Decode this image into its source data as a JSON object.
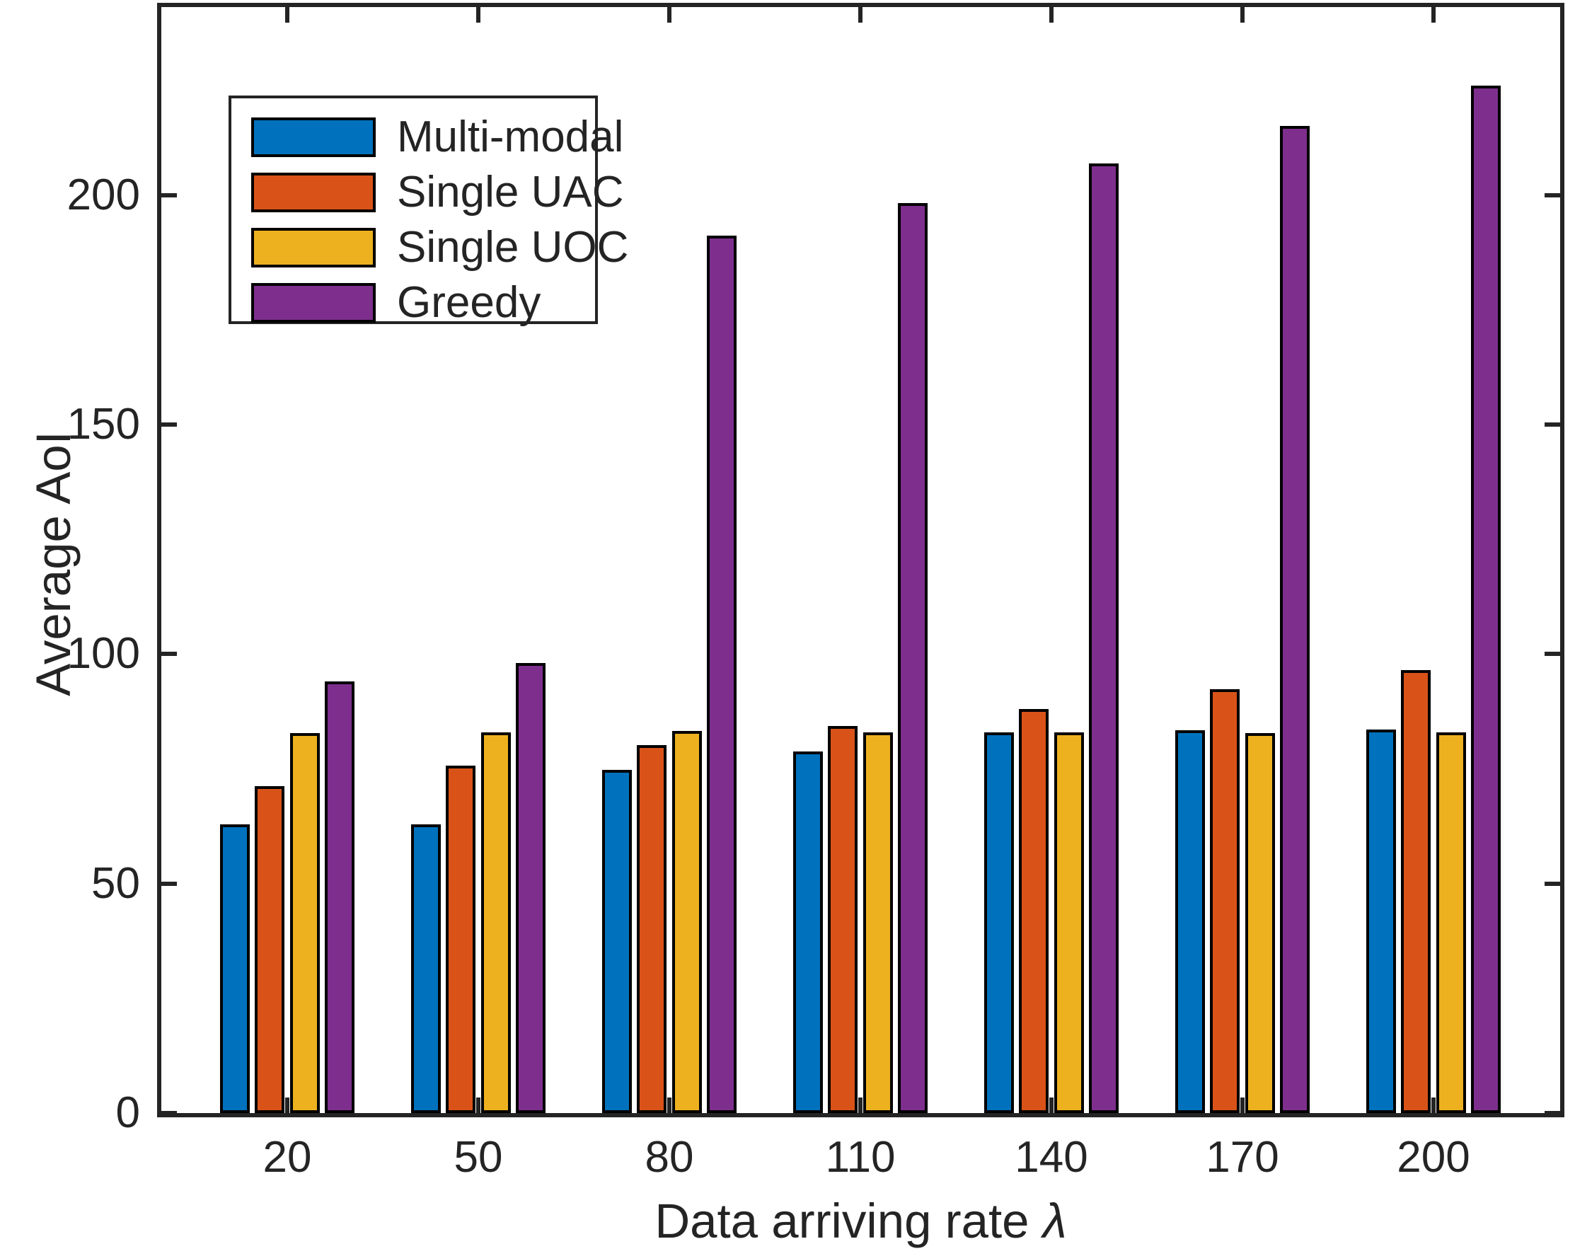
{
  "axis": {
    "ylabel": "Average AoI",
    "xlabel_text": "Data arriving rate ",
    "xlabel_symbol": "λ",
    "axis_color": "#242424"
  },
  "chart_data": {
    "type": "bar",
    "title": "",
    "xlabel": "Data arriving rate λ",
    "ylabel": "Average AoI",
    "categories": [
      "20",
      "50",
      "80",
      "110",
      "140",
      "170",
      "200"
    ],
    "series": [
      {
        "name": "Multi-modal",
        "color": "#0072BD",
        "values": [
          62.9,
          62.9,
          74.8,
          78.8,
          83.0,
          83.4,
          83.6
        ]
      },
      {
        "name": "Single UAC",
        "color": "#D95319",
        "values": [
          71.2,
          75.7,
          80.2,
          84.3,
          88.1,
          92.4,
          96.5
        ]
      },
      {
        "name": "Single UOC",
        "color": "#EDB120",
        "values": [
          82.8,
          83.0,
          83.3,
          83.0,
          83.0,
          82.8,
          83.0
        ]
      },
      {
        "name": "Greedy",
        "color": "#7E2F8E",
        "values": [
          94.1,
          98.1,
          191.2,
          198.3,
          207.0,
          215.1,
          223.9
        ]
      }
    ],
    "yticks": [
      0,
      50,
      100,
      150,
      200
    ],
    "ylim": [
      0,
      241
    ],
    "grid": false,
    "legend_position": "upper-left",
    "bar_edge_color": "#000000"
  }
}
